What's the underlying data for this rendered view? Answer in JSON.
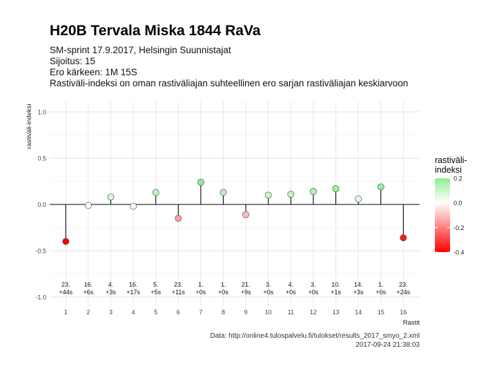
{
  "title": "H20B Tervala Miska 1844 RaVa",
  "subtitle_lines": [
    "SM-sprint 17.9.2017, Helsingin Suunnistajat",
    "Sijoitus: 15",
    "Ero kärkeen: 1M 15S",
    "Rastiväli-indeksi on oman rastiväliajan suhteellinen ero sarjan rastiväliajan keskiarvoon"
  ],
  "caption_lines": [
    "Data: http://online4.tulospalvelu.fi/tulokset/results_2017_smyo_2.xml",
    "2017-09-24 21:38:03"
  ],
  "legend": {
    "title_lines": [
      "rastiväli-",
      "indeksi"
    ],
    "ticks": [
      "0.2",
      "0.0",
      "-0.2",
      "-0.4"
    ],
    "tick_values": [
      0.2,
      0.0,
      -0.2,
      -0.4
    ],
    "range": [
      -0.4,
      0.2
    ],
    "colors": {
      "low": "#ff0000",
      "mid": "#ffffff",
      "high": "#90ee90"
    }
  },
  "chart_data": {
    "type": "lollipop",
    "xlabel": "Rastit",
    "ylabel": "rastiväli-indeksi",
    "ylim": [
      -1.05,
      1.1
    ],
    "yticks": [
      "1.0",
      "0.5",
      "0.0",
      "-0.5",
      "-1.0"
    ],
    "ytick_values": [
      1.0,
      0.5,
      0.0,
      -0.5,
      -1.0
    ],
    "grid": true,
    "x": [
      1,
      2,
      3,
      4,
      5,
      6,
      7,
      8,
      9,
      10,
      11,
      12,
      13,
      14,
      15,
      16
    ],
    "values": [
      -0.4,
      -0.01,
      0.08,
      -0.02,
      0.13,
      -0.15,
      0.24,
      0.13,
      -0.11,
      0.1,
      0.11,
      0.14,
      0.17,
      0.06,
      0.19,
      -0.36
    ],
    "rank_labels": [
      "23.",
      "16.",
      "4.",
      "16.",
      "5.",
      "23.",
      "1.",
      "1.",
      "21.",
      "3.",
      "4.",
      "3.",
      "10.",
      "14.",
      "1.",
      "23."
    ],
    "diff_labels": [
      "+44s",
      "+6s",
      "+3s",
      "+17s",
      "+5s",
      "+11s",
      "+0s",
      "+0s",
      "+9s",
      "+0s",
      "+0s",
      "+0s",
      "+1s",
      "+3s",
      "+0s",
      "+24s"
    ]
  }
}
